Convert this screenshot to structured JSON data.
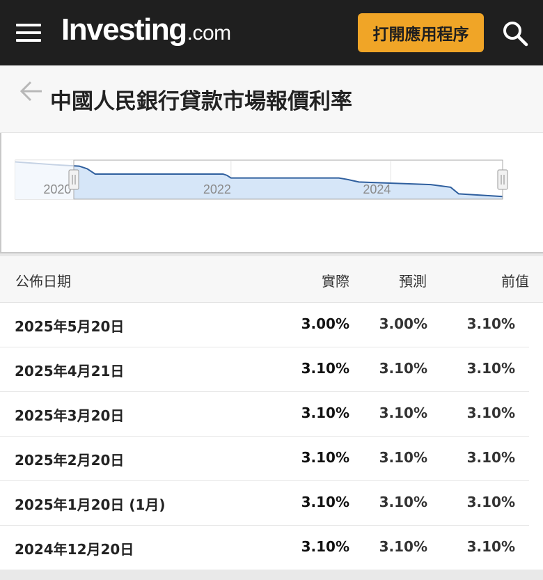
{
  "header": {
    "logo_main": "Investing",
    "logo_tld": ".com",
    "app_button_label": "打開應用程序"
  },
  "page": {
    "title": "中國人民銀行貸款市場報價利率"
  },
  "chart_data": {
    "type": "area",
    "x_tick_labels": [
      "2020",
      "2022",
      "2024"
    ],
    "series": [
      {
        "values": [
          {
            "x": 2019.3,
            "y": 4.31
          },
          {
            "x": 2019.8,
            "y": 4.2
          },
          {
            "x": 2020.1,
            "y": 4.15
          },
          {
            "x": 2020.2,
            "y": 4.05
          },
          {
            "x": 2020.3,
            "y": 3.85
          },
          {
            "x": 2021.9,
            "y": 3.85
          },
          {
            "x": 2021.95,
            "y": 3.8
          },
          {
            "x": 2022.0,
            "y": 3.7
          },
          {
            "x": 2023.35,
            "y": 3.7
          },
          {
            "x": 2023.45,
            "y": 3.65
          },
          {
            "x": 2023.6,
            "y": 3.55
          },
          {
            "x": 2024.5,
            "y": 3.45
          },
          {
            "x": 2024.75,
            "y": 3.35
          },
          {
            "x": 2024.85,
            "y": 3.1
          },
          {
            "x": 2025.4,
            "y": 3.0
          }
        ]
      }
    ],
    "colors": {
      "line": "#2f5f9e",
      "fill": "#d6e6f8",
      "selector": "#aaaaaa"
    }
  },
  "table": {
    "headers": {
      "date": "公佈日期",
      "actual": "實際",
      "forecast": "預測",
      "previous": "前值"
    },
    "rows": [
      {
        "date": "2025年5月20日",
        "actual": "3.00%",
        "forecast": "3.00%",
        "previous": "3.10%"
      },
      {
        "date": "2025年4月21日",
        "actual": "3.10%",
        "forecast": "3.10%",
        "previous": "3.10%"
      },
      {
        "date": "2025年3月20日",
        "actual": "3.10%",
        "forecast": "3.10%",
        "previous": "3.10%"
      },
      {
        "date": "2025年2月20日",
        "actual": "3.10%",
        "forecast": "3.10%",
        "previous": "3.10%"
      },
      {
        "date": "2025年1月20日 (1月)",
        "actual": "3.10%",
        "forecast": "3.10%",
        "previous": "3.10%"
      },
      {
        "date": "2024年12月20日",
        "actual": "3.10%",
        "forecast": "3.10%",
        "previous": "3.10%"
      }
    ]
  },
  "icons": [
    "menu-icon",
    "search-icon",
    "back-arrow-icon"
  ],
  "colors": {
    "header_bg": "#1f1f1f",
    "accent": "#f0a527"
  }
}
